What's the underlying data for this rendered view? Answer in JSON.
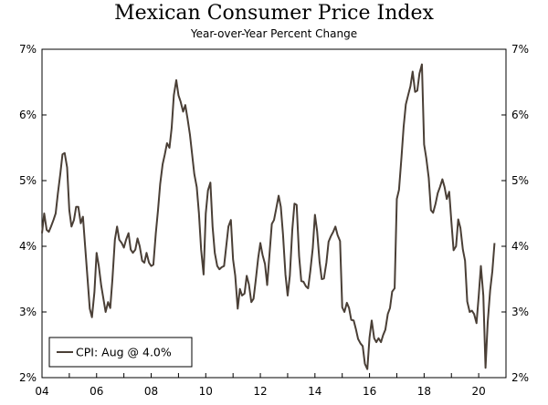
{
  "chart_data": {
    "type": "line",
    "title": "Mexican Consumer Price Index",
    "subtitle": "Year-over-Year Percent Change",
    "xlabel": "",
    "ylabel": "",
    "xlim": [
      2004.0,
      2021.0
    ],
    "ylim": [
      2,
      7
    ],
    "y_ticks": [
      "2%",
      "3%",
      "4%",
      "5%",
      "6%",
      "7%"
    ],
    "x_ticks": [
      "04",
      "06",
      "08",
      "10",
      "12",
      "14",
      "16",
      "18",
      "20"
    ],
    "grid": false,
    "legend": {
      "position": "bottom-left",
      "entries": [
        "CPI: Aug @ 4.0%"
      ]
    },
    "colors": {
      "line": "#4a3f36",
      "axis": "#000000"
    },
    "series": [
      {
        "name": "CPI: Aug @ 4.0%",
        "x": [
          2004.0,
          2004.08,
          2004.17,
          2004.25,
          2004.33,
          2004.42,
          2004.5,
          2004.58,
          2004.67,
          2004.75,
          2004.83,
          2004.92,
          2005.0,
          2005.08,
          2005.17,
          2005.25,
          2005.33,
          2005.42,
          2005.5,
          2005.58,
          2005.67,
          2005.75,
          2005.83,
          2005.92,
          2006.0,
          2006.08,
          2006.17,
          2006.25,
          2006.33,
          2006.42,
          2006.5,
          2006.58,
          2006.67,
          2006.75,
          2006.83,
          2006.92,
          2007.0,
          2007.08,
          2007.17,
          2007.25,
          2007.33,
          2007.42,
          2007.5,
          2007.58,
          2007.67,
          2007.75,
          2007.83,
          2007.92,
          2008.0,
          2008.08,
          2008.17,
          2008.25,
          2008.33,
          2008.42,
          2008.5,
          2008.58,
          2008.67,
          2008.75,
          2008.83,
          2008.92,
          2009.0,
          2009.08,
          2009.17,
          2009.25,
          2009.33,
          2009.42,
          2009.5,
          2009.58,
          2009.67,
          2009.75,
          2009.83,
          2009.92,
          2010.0,
          2010.08,
          2010.17,
          2010.25,
          2010.33,
          2010.42,
          2010.5,
          2010.58,
          2010.67,
          2010.75,
          2010.83,
          2010.92,
          2011.0,
          2011.08,
          2011.17,
          2011.25,
          2011.33,
          2011.42,
          2011.5,
          2011.58,
          2011.67,
          2011.75,
          2011.83,
          2011.92,
          2012.0,
          2012.08,
          2012.17,
          2012.25,
          2012.33,
          2012.42,
          2012.5,
          2012.58,
          2012.67,
          2012.75,
          2012.83,
          2012.92,
          2013.0,
          2013.08,
          2013.17,
          2013.25,
          2013.33,
          2013.42,
          2013.5,
          2013.58,
          2013.67,
          2013.75,
          2013.83,
          2013.92,
          2014.0,
          2014.08,
          2014.17,
          2014.25,
          2014.33,
          2014.42,
          2014.5,
          2014.58,
          2014.67,
          2014.75,
          2014.83,
          2014.92,
          2015.0,
          2015.08,
          2015.17,
          2015.25,
          2015.33,
          2015.42,
          2015.5,
          2015.58,
          2015.67,
          2015.75,
          2015.83,
          2015.92,
          2016.0,
          2016.08,
          2016.17,
          2016.25,
          2016.33,
          2016.42,
          2016.5,
          2016.58,
          2016.67,
          2016.75,
          2016.83,
          2016.92,
          2017.0,
          2017.08,
          2017.17,
          2017.25,
          2017.33,
          2017.42,
          2017.5,
          2017.58,
          2017.67,
          2017.75,
          2017.83,
          2017.92,
          2018.0,
          2018.08,
          2018.17,
          2018.25,
          2018.33,
          2018.42,
          2018.5,
          2018.58,
          2018.67,
          2018.75,
          2018.83,
          2018.92,
          2019.0,
          2019.08,
          2019.17,
          2019.25,
          2019.33,
          2019.42,
          2019.5,
          2019.58,
          2019.67,
          2019.75,
          2019.83,
          2019.92,
          2020.0,
          2020.08,
          2020.17,
          2020.25,
          2020.33,
          2020.42,
          2020.5,
          2020.58
        ],
        "values": [
          4.2,
          4.5,
          4.25,
          4.22,
          4.3,
          4.4,
          4.5,
          4.8,
          5.1,
          5.4,
          5.42,
          5.2,
          4.55,
          4.3,
          4.4,
          4.6,
          4.6,
          4.35,
          4.45,
          4.0,
          3.5,
          3.05,
          2.92,
          3.3,
          3.9,
          3.7,
          3.4,
          3.2,
          3.0,
          3.15,
          3.06,
          3.5,
          4.1,
          4.3,
          4.1,
          4.05,
          3.98,
          4.1,
          4.2,
          3.95,
          3.9,
          3.95,
          4.12,
          4.0,
          3.78,
          3.75,
          3.9,
          3.75,
          3.7,
          3.72,
          4.2,
          4.55,
          4.95,
          5.25,
          5.4,
          5.57,
          5.5,
          5.8,
          6.3,
          6.53,
          6.3,
          6.2,
          6.05,
          6.15,
          5.95,
          5.7,
          5.4,
          5.1,
          4.9,
          4.5,
          3.95,
          3.57,
          4.5,
          4.85,
          4.97,
          4.3,
          3.9,
          3.7,
          3.65,
          3.68,
          3.7,
          4.0,
          4.3,
          4.4,
          3.8,
          3.55,
          3.05,
          3.35,
          3.25,
          3.28,
          3.55,
          3.42,
          3.15,
          3.2,
          3.48,
          3.82,
          4.05,
          3.87,
          3.73,
          3.41,
          3.85,
          4.34,
          4.4,
          4.57,
          4.77,
          4.6,
          4.18,
          3.57,
          3.25,
          3.55,
          4.25,
          4.65,
          4.63,
          3.85,
          3.47,
          3.46,
          3.39,
          3.36,
          3.62,
          3.97,
          4.48,
          4.23,
          3.76,
          3.5,
          3.51,
          3.75,
          4.07,
          4.15,
          4.22,
          4.3,
          4.17,
          4.08,
          3.07,
          3.0,
          3.14,
          3.06,
          2.88,
          2.87,
          2.74,
          2.59,
          2.52,
          2.48,
          2.21,
          2.13,
          2.61,
          2.87,
          2.6,
          2.54,
          2.6,
          2.54,
          2.65,
          2.73,
          2.97,
          3.06,
          3.31,
          3.36,
          4.72,
          4.86,
          5.35,
          5.82,
          6.16,
          6.31,
          6.44,
          6.66,
          6.35,
          6.37,
          6.63,
          6.77,
          5.55,
          5.34,
          5.04,
          4.55,
          4.51,
          4.65,
          4.81,
          4.9,
          5.02,
          4.9,
          4.72,
          4.83,
          4.37,
          3.94,
          4.0,
          4.41,
          4.28,
          3.95,
          3.78,
          3.16,
          3.0,
          3.02,
          2.97,
          2.83,
          3.24,
          3.7,
          3.25,
          2.15,
          2.84,
          3.33,
          3.62,
          4.05
        ]
      }
    ]
  }
}
